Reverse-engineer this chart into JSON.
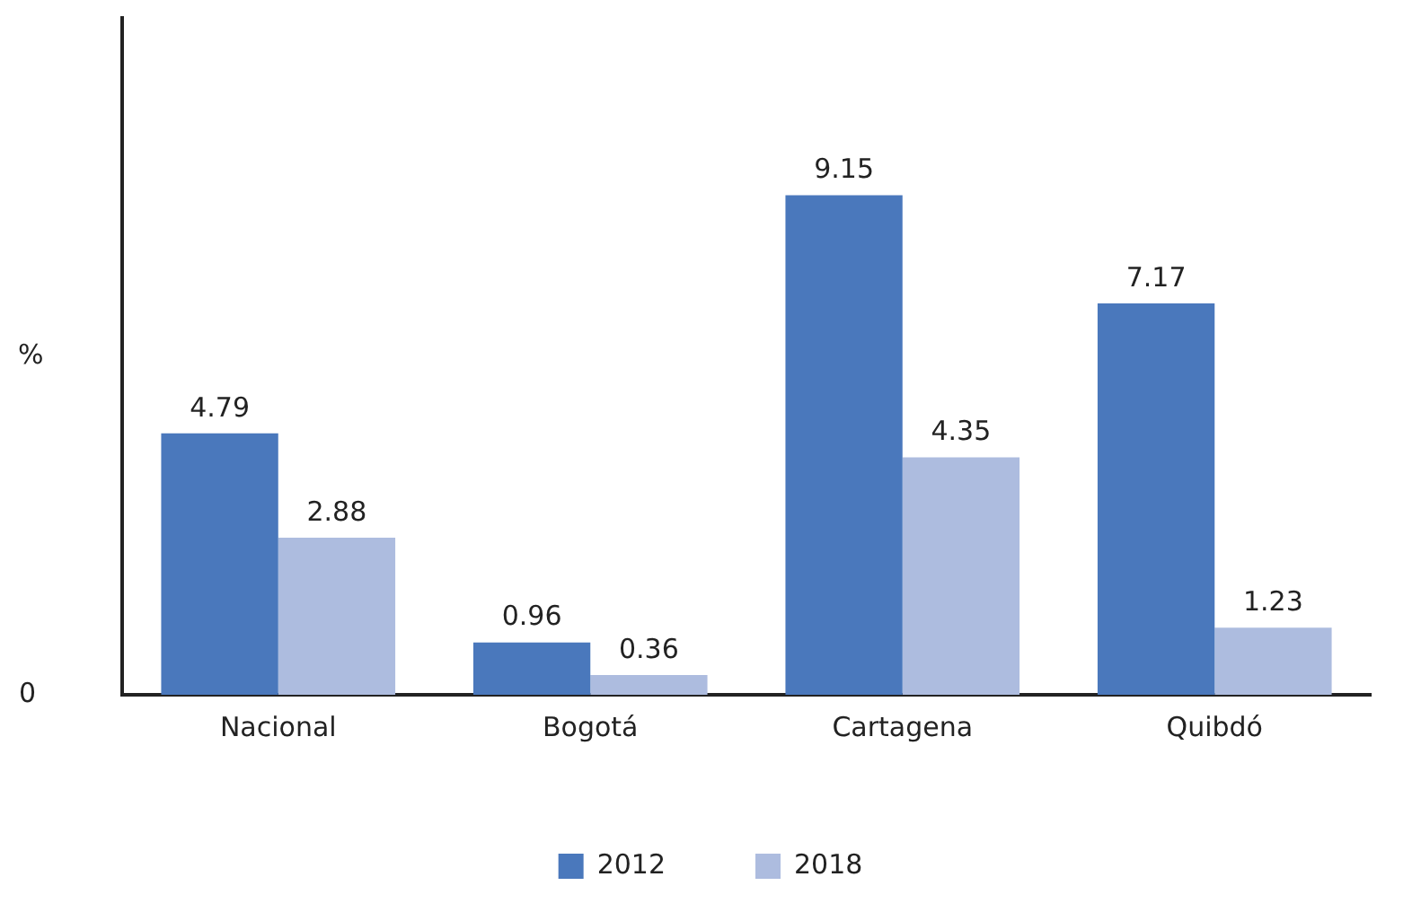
{
  "chart_data": {
    "type": "bar",
    "ylabel": "%",
    "categories": [
      "Nacional",
      "Bogotá",
      "Cartagena",
      "Quibdó"
    ],
    "series": [
      {
        "name": "2012",
        "color": "#4a78bc",
        "values": [
          4.79,
          0.96,
          9.15,
          7.17
        ]
      },
      {
        "name": "2018",
        "color": "#adbcdf",
        "values": [
          2.88,
          0.36,
          4.35,
          1.23
        ]
      }
    ],
    "ylim": [
      0,
      12.4
    ],
    "annotations": [
      "0"
    ],
    "data_labels": true,
    "grid": false,
    "legend": "bottom"
  }
}
